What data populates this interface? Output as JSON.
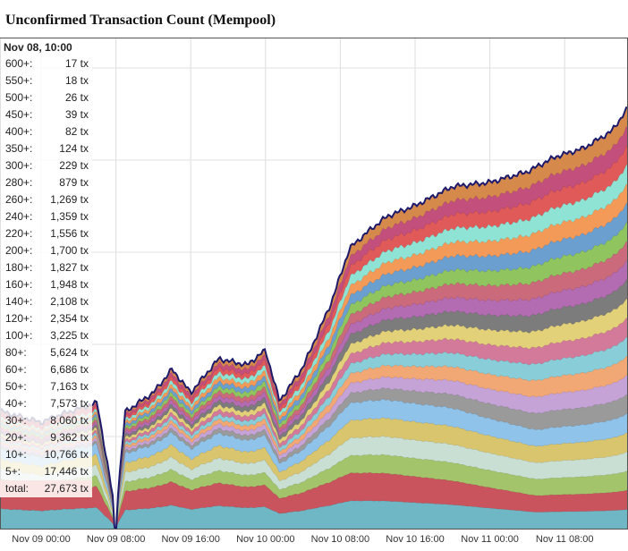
{
  "chart_data": {
    "type": "area",
    "title": "Unconfirmed Transaction Count (Mempool)",
    "x_ticks": [
      "Nov 09 00:00",
      "Nov 09 08:00",
      "Nov 09 16:00",
      "Nov 10 00:00",
      "Nov 10 08:00",
      "Nov 10 16:00",
      "Nov 11 00:00",
      "Nov 11 08:00"
    ],
    "grid": true,
    "stacked": true,
    "tooltip": {
      "time": "Nov 08, 10:00",
      "rows": [
        {
          "bucket": "600+:",
          "value": "17 tx"
        },
        {
          "bucket": "550+:",
          "value": "18 tx"
        },
        {
          "bucket": "500+:",
          "value": "26 tx"
        },
        {
          "bucket": "450+:",
          "value": "39 tx"
        },
        {
          "bucket": "400+:",
          "value": "82 tx"
        },
        {
          "bucket": "350+:",
          "value": "124 tx"
        },
        {
          "bucket": "300+:",
          "value": "229 tx"
        },
        {
          "bucket": "280+:",
          "value": "879 tx"
        },
        {
          "bucket": "260+:",
          "value": "1,269 tx"
        },
        {
          "bucket": "240+:",
          "value": "1,359 tx"
        },
        {
          "bucket": "220+:",
          "value": "1,556 tx"
        },
        {
          "bucket": "200+:",
          "value": "1,700 tx"
        },
        {
          "bucket": "180+:",
          "value": "1,827 tx"
        },
        {
          "bucket": "160+:",
          "value": "1,948 tx"
        },
        {
          "bucket": "140+:",
          "value": "2,108 tx"
        },
        {
          "bucket": "120+:",
          "value": "2,354 tx"
        },
        {
          "bucket": "100+:",
          "value": "3,225 tx"
        },
        {
          "bucket": "80+:",
          "value": "5,624 tx"
        },
        {
          "bucket": "60+:",
          "value": "6,686 tx"
        },
        {
          "bucket": "50+:",
          "value": "7,163 tx"
        },
        {
          "bucket": "40+:",
          "value": "7,573 tx"
        },
        {
          "bucket": "30+:",
          "value": "8,060 tx"
        },
        {
          "bucket": "20+:",
          "value": "9,362 tx"
        },
        {
          "bucket": "10+:",
          "value": "10,766 tx"
        },
        {
          "bucket": "5+:",
          "value": "17,446 tx"
        }
      ],
      "total_label": "total:",
      "total_value": "27,673 tx"
    },
    "total_series": [
      {
        "x": "Nov 08 10:00",
        "y": 27673
      },
      {
        "x": "Nov 09 00:00",
        "y": 25000
      },
      {
        "x": "Nov 09 02:00",
        "y": 26800
      },
      {
        "x": "Nov 09 06:00",
        "y": 29600
      },
      {
        "x": "Nov 09 08:00",
        "y": 3000
      },
      {
        "x": "Nov 09 09:00",
        "y": 27500
      },
      {
        "x": "Nov 09 12:00",
        "y": 32000
      },
      {
        "x": "Nov 09 14:00",
        "y": 37500
      },
      {
        "x": "Nov 09 16:00",
        "y": 32000
      },
      {
        "x": "Nov 09 19:00",
        "y": 40000
      },
      {
        "x": "Nov 09 22:00",
        "y": 38500
      },
      {
        "x": "Nov 10 00:00",
        "y": 42000
      },
      {
        "x": "Nov 10 01:30",
        "y": 30000
      },
      {
        "x": "Nov 10 04:00",
        "y": 38000
      },
      {
        "x": "Nov 10 07:00",
        "y": 53000
      },
      {
        "x": "Nov 10 09:00",
        "y": 66000
      },
      {
        "x": "Nov 10 11:00",
        "y": 70000
      },
      {
        "x": "Nov 10 13:00",
        "y": 73500
      },
      {
        "x": "Nov 10 16:00",
        "y": 76000
      },
      {
        "x": "Nov 10 20:00",
        "y": 80500
      },
      {
        "x": "Nov 11 00:00",
        "y": 81500
      },
      {
        "x": "Nov 11 04:00",
        "y": 84000
      },
      {
        "x": "Nov 11 07:00",
        "y": 87500
      },
      {
        "x": "Nov 11 10:00",
        "y": 89500
      },
      {
        "x": "Nov 11 13:00",
        "y": 93500
      },
      {
        "x": "Nov 11 15:00",
        "y": 99000
      },
      {
        "x": "Nov 11 16:00",
        "y": 96000
      }
    ],
    "colors": [
      "#6fb7c4",
      "#c9545e",
      "#a3c46a",
      "#c9dfd3",
      "#d9c56e",
      "#8fc3ea",
      "#9a9a9a",
      "#c6a3d7",
      "#f2a875",
      "#89cdd9",
      "#d37a9a",
      "#e3d17a",
      "#7c7c7c",
      "#b36bb2",
      "#cb6a7a",
      "#8fc45e",
      "#6b9fd0",
      "#f49a58",
      "#8ee3d4",
      "#e05a5a",
      "#c34f7d",
      "#d58a4c"
    ],
    "line_color": "#1e1a6b"
  }
}
